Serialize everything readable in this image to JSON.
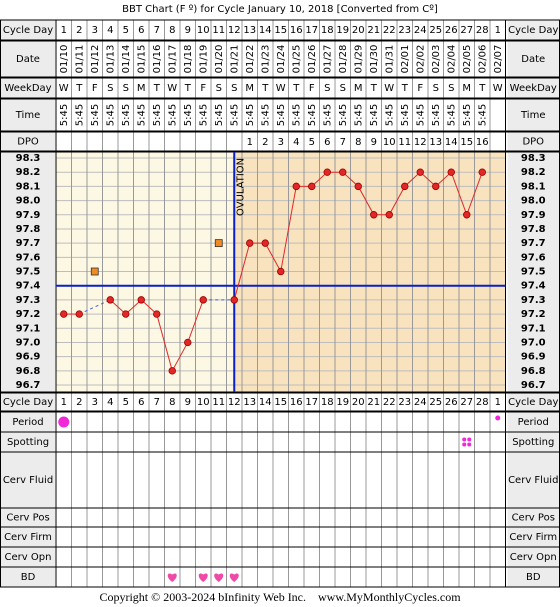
{
  "chart_data": {
    "type": "line",
    "title": "BBT Chart (F º) for Cycle January 10, 2018  [Converted from Cº]",
    "categories": [
      1,
      2,
      3,
      4,
      5,
      6,
      7,
      8,
      9,
      10,
      11,
      12,
      13,
      14,
      15,
      16,
      17,
      18,
      19,
      20,
      21,
      22,
      23,
      24,
      25,
      26,
      27,
      28,
      1
    ],
    "dates": [
      "01/10",
      "01/11",
      "01/12",
      "01/13",
      "01/14",
      "01/15",
      "01/16",
      "01/17",
      "01/18",
      "01/19",
      "01/20",
      "01/21",
      "01/22",
      "01/23",
      "01/24",
      "01/25",
      "01/26",
      "01/27",
      "01/28",
      "01/29",
      "01/30",
      "01/31",
      "02/01",
      "02/02",
      "02/03",
      "02/04",
      "02/05",
      "02/06",
      "02/07"
    ],
    "weekdays": [
      "W",
      "T",
      "F",
      "S",
      "S",
      "M",
      "T",
      "W",
      "T",
      "F",
      "S",
      "S",
      "M",
      "T",
      "W",
      "T",
      "F",
      "S",
      "S",
      "M",
      "T",
      "W",
      "T",
      "F",
      "S",
      "S",
      "M",
      "T",
      "W"
    ],
    "times": [
      "5:45",
      "5:45",
      "5:45",
      "5:45",
      "5:45",
      "5:45",
      "5:45",
      "5:45",
      "5:45",
      "5:45",
      "5:45",
      "5:45",
      "5:45",
      "5:45",
      "5:45",
      "5:45",
      "5:45",
      "5:45",
      "5:45",
      "5:45",
      "5:45",
      "5:45",
      "5:45",
      "5:45",
      "5:45",
      "5:45",
      "5:45",
      "5:45",
      null
    ],
    "dpo": [
      null,
      null,
      null,
      null,
      null,
      null,
      null,
      null,
      null,
      null,
      null,
      null,
      1,
      2,
      3,
      4,
      5,
      6,
      7,
      8,
      9,
      10,
      11,
      12,
      13,
      14,
      15,
      16,
      null
    ],
    "values": [
      97.2,
      97.2,
      null,
      97.3,
      97.2,
      97.3,
      97.2,
      96.8,
      97.0,
      97.3,
      null,
      97.3,
      97.7,
      97.7,
      97.5,
      98.1,
      98.1,
      98.2,
      98.2,
      98.1,
      97.9,
      97.9,
      98.1,
      98.2,
      98.1,
      98.2,
      97.9,
      98.2,
      null
    ],
    "excluded_values": [
      null,
      null,
      97.5,
      null,
      null,
      null,
      null,
      null,
      null,
      null,
      97.7,
      null,
      null,
      null,
      null,
      null,
      null,
      null,
      null,
      null,
      null,
      null,
      null,
      null,
      null,
      null,
      null,
      null,
      null
    ],
    "color": "#e02828",
    "excluded_color": "#f08a24",
    "coverline": 97.4,
    "ovulation_index": 11,
    "ovulation_label": "OVULATION",
    "ylim": [
      96.7,
      98.3
    ],
    "yticks": [
      98.3,
      98.2,
      98.1,
      {
        "value": 98,
        "label": "98.0"
      },
      97.9,
      97.8,
      97.7,
      97.6,
      97.5,
      97.4,
      97.3,
      97.2,
      97.1,
      {
        "value": 97,
        "label": "97.0"
      },
      96.9,
      96.8,
      96.7
    ],
    "row_labels": {
      "cycle_day": "Cycle Day",
      "date": "Date",
      "weekday": "WeekDay",
      "time": "Time",
      "dpo": "DPO",
      "period": "Period",
      "spotting": "Spotting",
      "cerv_fluid": "Cerv Fluid",
      "cerv_pos": "Cerv Pos",
      "cerv_firm": "Cerv Firm",
      "cerv_opn": "Cerv Opn",
      "bd": "BD"
    },
    "period": {
      "large": [
        0
      ],
      "small": [
        28
      ]
    },
    "spotting": [
      26
    ],
    "bd": [
      7,
      9,
      10,
      11
    ]
  },
  "footer": "Copyright © 2003-2024 bInfinity Web Inc.    www.MyMonthlyCycles.com"
}
